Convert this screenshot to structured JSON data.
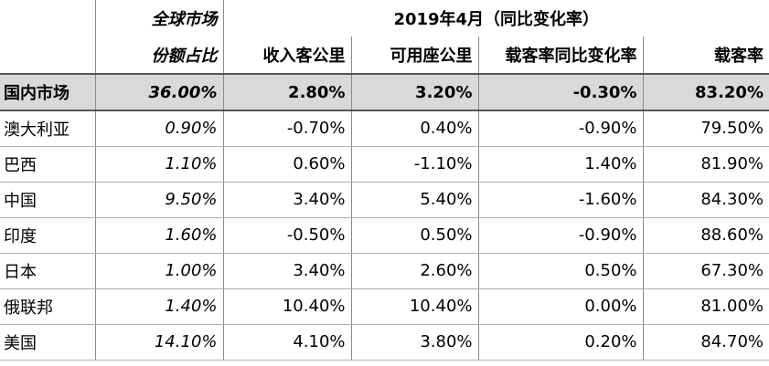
{
  "header": {
    "global_market_label": "全球市场",
    "period_label": "2019年4月（同比变化率）",
    "share_label": "份额占比",
    "columns": [
      "收入客公里",
      "可用座公里",
      "载客率同比变化率",
      "载客率"
    ]
  },
  "domestic": {
    "name": "国内市场",
    "share": "36.00%",
    "rpk": "2.80%",
    "ask": "3.20%",
    "plf_change": "-0.30%",
    "plf": "83.20%"
  },
  "rows": [
    {
      "name": "澳大利亚",
      "share": "0.90%",
      "rpk": "-0.70%",
      "ask": "0.40%",
      "plf_change": "-0.90%",
      "plf": "79.50%"
    },
    {
      "name": "巴西",
      "share": "1.10%",
      "rpk": "0.60%",
      "ask": "-1.10%",
      "plf_change": "1.40%",
      "plf": "81.90%"
    },
    {
      "name": "中国",
      "share": "9.50%",
      "rpk": "3.40%",
      "ask": "5.40%",
      "plf_change": "-1.60%",
      "plf": "84.30%"
    },
    {
      "name": "印度",
      "share": "1.60%",
      "rpk": "-0.50%",
      "ask": "0.50%",
      "plf_change": "-0.90%",
      "plf": "88.60%"
    },
    {
      "name": "日本",
      "share": "1.00%",
      "rpk": "3.40%",
      "ask": "2.60%",
      "plf_change": "0.50%",
      "plf": "67.30%"
    },
    {
      "name": "俄联邦",
      "share": "1.40%",
      "rpk": "10.40%",
      "ask": "10.40%",
      "plf_change": "0.00%",
      "plf": "81.00%"
    },
    {
      "name": "美国",
      "share": "14.10%",
      "rpk": "4.10%",
      "ask": "3.80%",
      "plf_change": "0.20%",
      "plf": "84.70%"
    }
  ]
}
